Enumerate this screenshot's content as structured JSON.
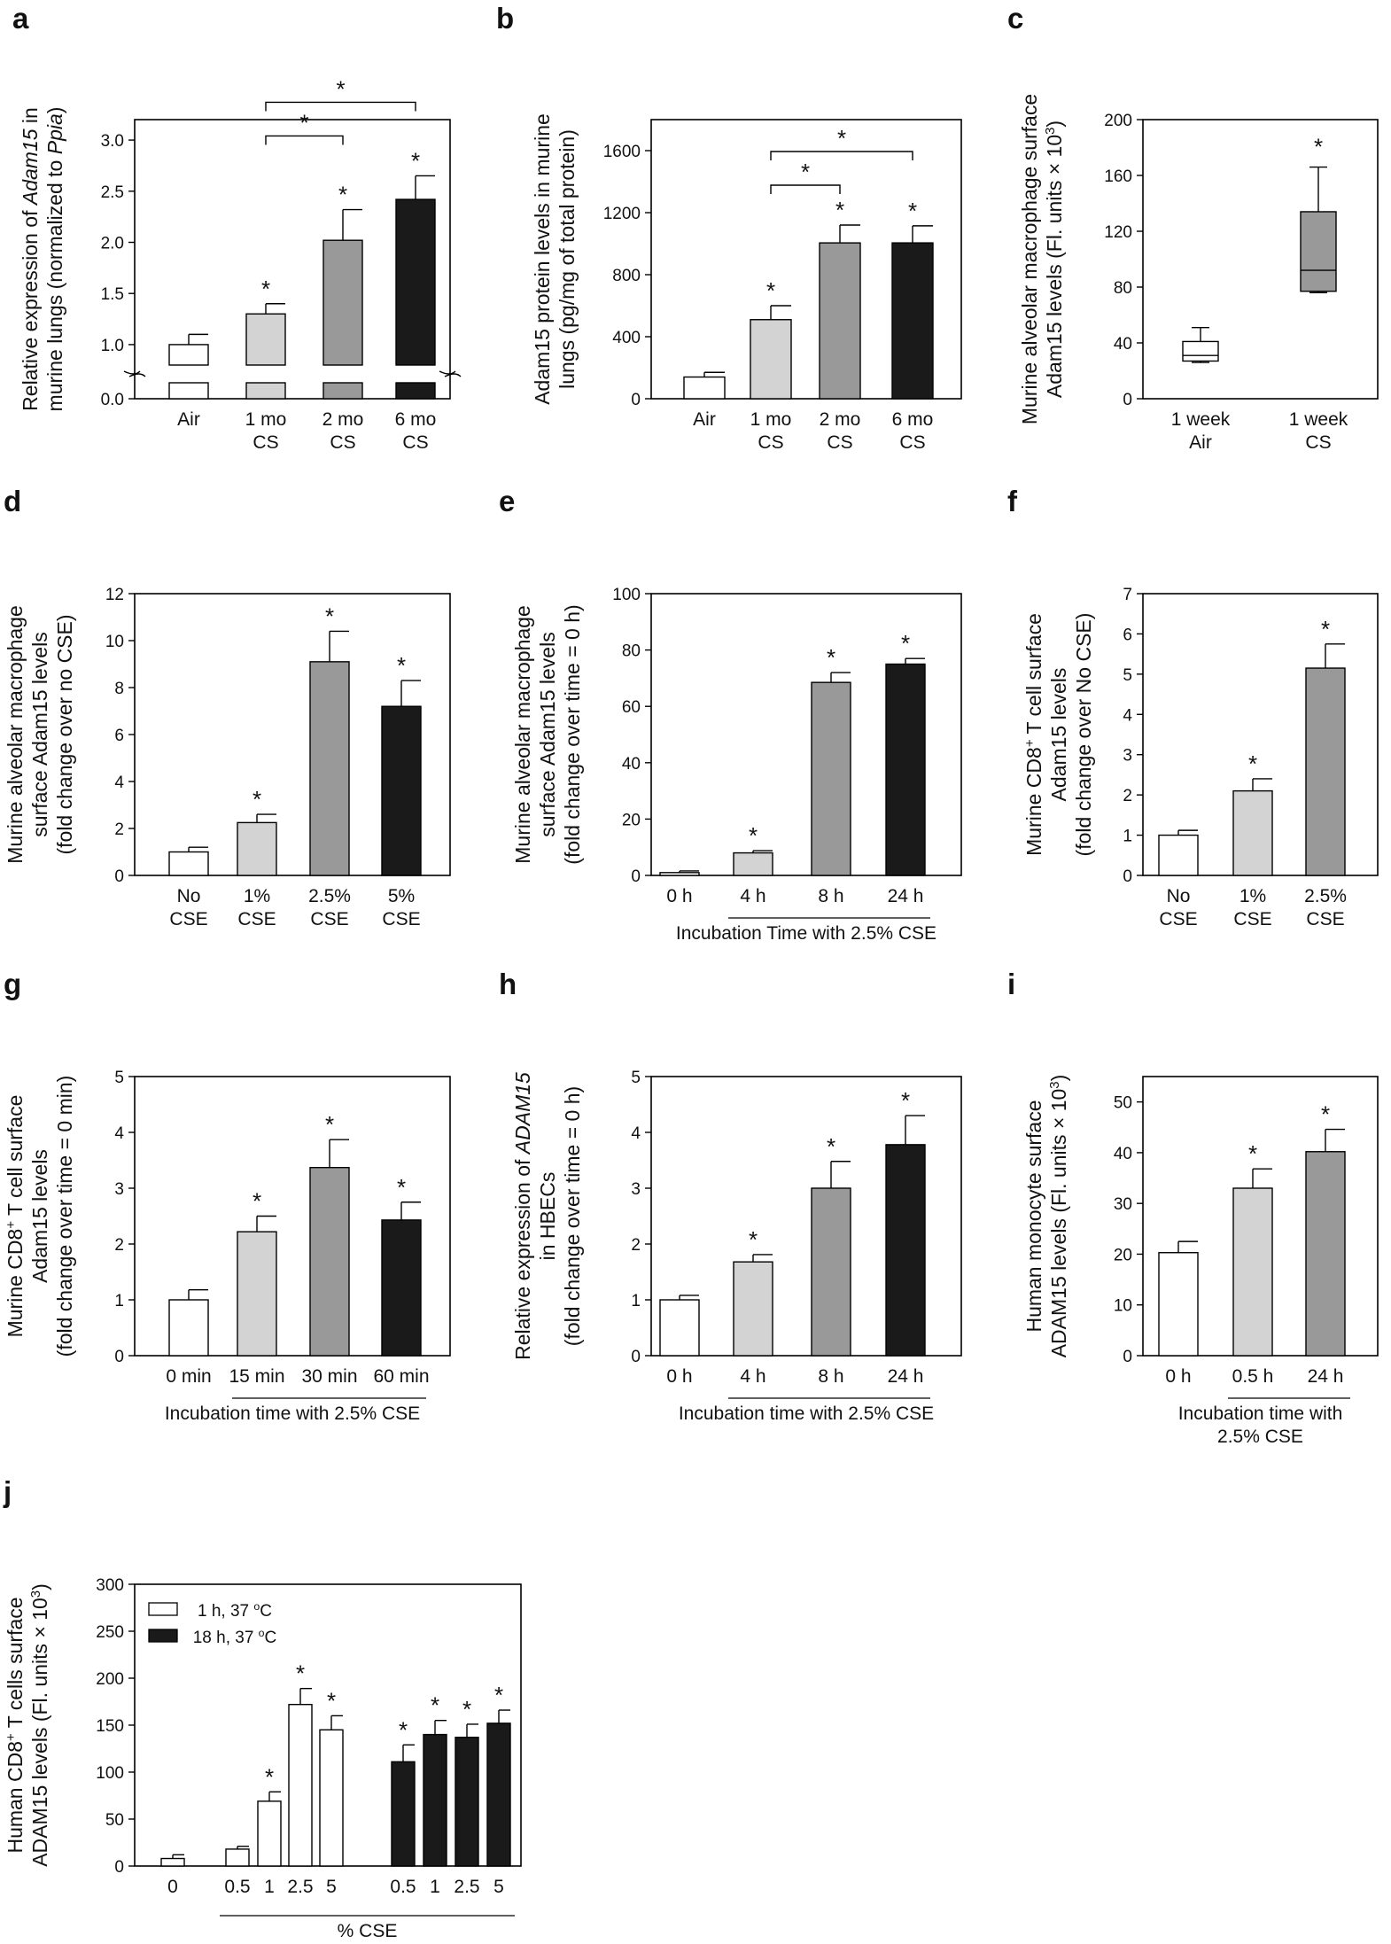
{
  "chart_data": [
    {
      "id": "a",
      "panel_label": "a",
      "type": "bar",
      "ylabel_lines": [
        [
          "Relative expression of ",
          {
            "i": "Adam15"
          },
          " in"
        ],
        [
          "murine lungs (normalized to ",
          {
            "i": "Ppia"
          },
          ")"
        ]
      ],
      "yticks": [
        "0.0",
        "1.0",
        "1.5",
        "2.0",
        "2.5",
        "3.0"
      ],
      "ylim": [
        0,
        3.2
      ],
      "axis_break": [
        0.1,
        0.8
      ],
      "categories": [
        [
          "Air"
        ],
        [
          "1 mo",
          "CS"
        ],
        [
          "2 mo",
          "CS"
        ],
        [
          "6 mo",
          "CS"
        ]
      ],
      "values": [
        1.0,
        1.3,
        2.02,
        2.42
      ],
      "errors": [
        0.1,
        0.1,
        0.3,
        0.23
      ],
      "colors": [
        "#ffffff",
        "#d3d3d3",
        "#999999",
        "#1a1a1a"
      ],
      "significant": [
        false,
        true,
        true,
        true
      ],
      "brackets": [
        {
          "from": 1,
          "to": 2,
          "label": "*"
        },
        {
          "from": 1,
          "to": 3,
          "label": "*"
        }
      ]
    },
    {
      "id": "b",
      "panel_label": "b",
      "type": "bar",
      "ylabel_lines": [
        [
          "Adam15 protein levels in murine"
        ],
        [
          "lungs (pg/mg of total protein)"
        ]
      ],
      "yticks": [
        "0",
        "400",
        "800",
        "1200",
        "1600"
      ],
      "ylim": [
        0,
        1800
      ],
      "categories": [
        [
          "Air"
        ],
        [
          "1 mo",
          "CS"
        ],
        [
          "2 mo",
          "CS"
        ],
        [
          "6 mo",
          "CS"
        ]
      ],
      "values": [
        140,
        510,
        1005,
        1005
      ],
      "errors": [
        30,
        90,
        115,
        110
      ],
      "colors": [
        "#ffffff",
        "#d3d3d3",
        "#999999",
        "#1a1a1a"
      ],
      "significant": [
        false,
        true,
        true,
        true
      ],
      "brackets": [
        {
          "from": 1,
          "to": 2,
          "label": "*"
        },
        {
          "from": 1,
          "to": 3,
          "label": "*"
        }
      ]
    },
    {
      "id": "c",
      "panel_label": "c",
      "type": "box",
      "ylabel_lines": [
        [
          "Murine alveolar macrophage surface"
        ],
        [
          "Adam15 levels (Fl. units × 10",
          {
            "sup": "3"
          },
          ")"
        ]
      ],
      "yticks": [
        "0",
        "40",
        "80",
        "120",
        "160",
        "200"
      ],
      "ylim": [
        0,
        200
      ],
      "categories": [
        [
          "1 week",
          "Air"
        ],
        [
          "1 week",
          "CS"
        ]
      ],
      "boxes": [
        {
          "min": 26,
          "q1": 27,
          "median": 31,
          "q3": 41,
          "max": 51
        },
        {
          "min": 76,
          "q1": 77,
          "median": 92,
          "q3": 134,
          "max": 166
        }
      ],
      "colors": [
        "#ffffff",
        "#999999"
      ],
      "significant": [
        false,
        true
      ]
    },
    {
      "id": "d",
      "panel_label": "d",
      "type": "bar",
      "ylabel_lines": [
        [
          "Murine alveolar macrophage"
        ],
        [
          "surface Adam15 levels"
        ],
        [
          "(fold change over no CSE)"
        ]
      ],
      "yticks": [
        "0",
        "2",
        "4",
        "6",
        "8",
        "10",
        "12"
      ],
      "ylim": [
        0,
        12
      ],
      "categories": [
        [
          "No",
          "CSE"
        ],
        [
          "1%",
          "CSE"
        ],
        [
          "2.5%",
          "CSE"
        ],
        [
          "5%",
          "CSE"
        ]
      ],
      "values": [
        1.0,
        2.25,
        9.1,
        7.2
      ],
      "errors": [
        0.2,
        0.35,
        1.3,
        1.1
      ],
      "colors": [
        "#ffffff",
        "#d3d3d3",
        "#999999",
        "#1a1a1a"
      ],
      "significant": [
        false,
        true,
        true,
        true
      ]
    },
    {
      "id": "e",
      "panel_label": "e",
      "type": "bar",
      "ylabel_lines": [
        [
          "Murine alveolar macrophage"
        ],
        [
          "surface Adam15 levels"
        ],
        [
          "(fold change over time = 0 h)"
        ]
      ],
      "yticks": [
        "0",
        "20",
        "40",
        "60",
        "80",
        "100"
      ],
      "ylim": [
        0,
        100
      ],
      "categories": [
        [
          "0 h"
        ],
        [
          "4 h"
        ],
        [
          "8 h"
        ],
        [
          "24 h"
        ]
      ],
      "values": [
        1.0,
        8.0,
        68.5,
        75.0
      ],
      "errors": [
        0.6,
        0.8,
        3.5,
        2.0
      ],
      "colors": [
        "#ffffff",
        "#d3d3d3",
        "#999999",
        "#1a1a1a"
      ],
      "significant": [
        false,
        true,
        true,
        true
      ],
      "xlabel": "Incubation Time with 2.5% CSE"
    },
    {
      "id": "f",
      "panel_label": "f",
      "type": "bar",
      "ylabel_lines": [
        [
          "Murine CD8",
          {
            "sup": "+"
          },
          " T cell surface"
        ],
        [
          "Adam15 levels"
        ],
        [
          "(fold change over No CSE)"
        ]
      ],
      "yticks": [
        "0",
        "1",
        "2",
        "3",
        "4",
        "5",
        "6",
        "7"
      ],
      "ylim": [
        0,
        7
      ],
      "categories": [
        [
          "No",
          "CSE"
        ],
        [
          "1%",
          "CSE"
        ],
        [
          "2.5%",
          "CSE"
        ]
      ],
      "values": [
        1.0,
        2.1,
        5.15
      ],
      "errors": [
        0.12,
        0.3,
        0.6
      ],
      "colors": [
        "#ffffff",
        "#d3d3d3",
        "#999999"
      ],
      "significant": [
        false,
        true,
        true
      ]
    },
    {
      "id": "g",
      "panel_label": "g",
      "type": "bar",
      "ylabel_lines": [
        [
          "Murine CD8",
          {
            "sup": "+"
          },
          " T cell surface"
        ],
        [
          "Adam15 levels"
        ],
        [
          "(fold change over time = 0 min)"
        ]
      ],
      "yticks": [
        "0",
        "1",
        "2",
        "3",
        "4",
        "5"
      ],
      "ylim": [
        0,
        5
      ],
      "categories": [
        [
          "0 min"
        ],
        [
          "15 min"
        ],
        [
          "30 min"
        ],
        [
          "60 min"
        ]
      ],
      "values": [
        1.0,
        2.22,
        3.37,
        2.43
      ],
      "errors": [
        0.18,
        0.28,
        0.5,
        0.32
      ],
      "colors": [
        "#ffffff",
        "#d3d3d3",
        "#999999",
        "#1a1a1a"
      ],
      "significant": [
        false,
        true,
        true,
        true
      ],
      "xlabel": "Incubation time with 2.5% CSE"
    },
    {
      "id": "h",
      "panel_label": "h",
      "type": "bar",
      "ylabel_lines": [
        [
          "Relative expression of ",
          {
            "i": "ADAM15"
          }
        ],
        [
          "in HBECs"
        ],
        [
          "(fold change over time = 0 h)"
        ]
      ],
      "yticks": [
        "0",
        "1",
        "2",
        "3",
        "4",
        "5"
      ],
      "ylim": [
        0,
        5
      ],
      "categories": [
        [
          "0 h"
        ],
        [
          "4 h"
        ],
        [
          "8 h"
        ],
        [
          "24 h"
        ]
      ],
      "values": [
        1.0,
        1.68,
        3.0,
        3.78
      ],
      "errors": [
        0.08,
        0.13,
        0.48,
        0.52
      ],
      "colors": [
        "#ffffff",
        "#d3d3d3",
        "#999999",
        "#1a1a1a"
      ],
      "significant": [
        false,
        true,
        true,
        true
      ],
      "xlabel": "Incubation time with 2.5% CSE"
    },
    {
      "id": "i",
      "panel_label": "i",
      "type": "bar",
      "ylabel_lines": [
        [
          "Human monocyte surface"
        ],
        [
          "ADAM15 levels (Fl. units × 10",
          {
            "sup": "3"
          },
          ")"
        ]
      ],
      "yticks": [
        "0",
        "10",
        "20",
        "30",
        "40",
        "50"
      ],
      "ylim": [
        0,
        55
      ],
      "categories": [
        [
          "0 h"
        ],
        [
          "0.5 h"
        ],
        [
          "24 h"
        ]
      ],
      "values": [
        20.3,
        33.0,
        40.2
      ],
      "errors": [
        2.2,
        3.8,
        4.4
      ],
      "colors": [
        "#ffffff",
        "#d3d3d3",
        "#999999"
      ],
      "significant": [
        false,
        true,
        true
      ],
      "xlabel_lines": [
        "Incubation time with",
        "2.5% CSE"
      ]
    },
    {
      "id": "j",
      "panel_label": "j",
      "type": "bar",
      "ylabel_lines": [
        [
          "Human CD8",
          {
            "sup": "+"
          },
          " T cells surface"
        ],
        [
          "ADAM15 levels (Fl. units × 10",
          {
            "sup": "3"
          },
          ")"
        ]
      ],
      "yticks": [
        "0",
        "50",
        "100",
        "150",
        "200",
        "250",
        "300"
      ],
      "ylim": [
        0,
        300
      ],
      "categories": [
        [
          "0"
        ],
        [
          "0.5"
        ],
        [
          "1"
        ],
        [
          "2.5"
        ],
        [
          "5"
        ],
        [
          "0.5"
        ],
        [
          "1"
        ],
        [
          "2.5"
        ],
        [
          "5"
        ]
      ],
      "values": [
        8,
        18,
        69,
        172,
        145,
        111,
        140,
        137,
        152
      ],
      "errors": [
        4,
        3,
        10,
        17,
        15,
        18,
        15,
        14,
        14
      ],
      "series_index": [
        0,
        0,
        0,
        0,
        0,
        1,
        1,
        1,
        1
      ],
      "significant": [
        false,
        false,
        true,
        true,
        true,
        true,
        true,
        true,
        true
      ],
      "series": [
        {
          "name": "1 h, 37 °C",
          "name_parts": [
            "1 h, 37 ",
            {
              "sup": "o"
            },
            "C"
          ],
          "color": "#ffffff"
        },
        {
          "name": "18 h, 37 °C",
          "name_parts": [
            "18 h, 37 ",
            {
              "sup": "o"
            },
            "C"
          ],
          "color": "#1a1a1a"
        }
      ],
      "xlabel": "% CSE"
    }
  ],
  "significance_symbol": "*"
}
